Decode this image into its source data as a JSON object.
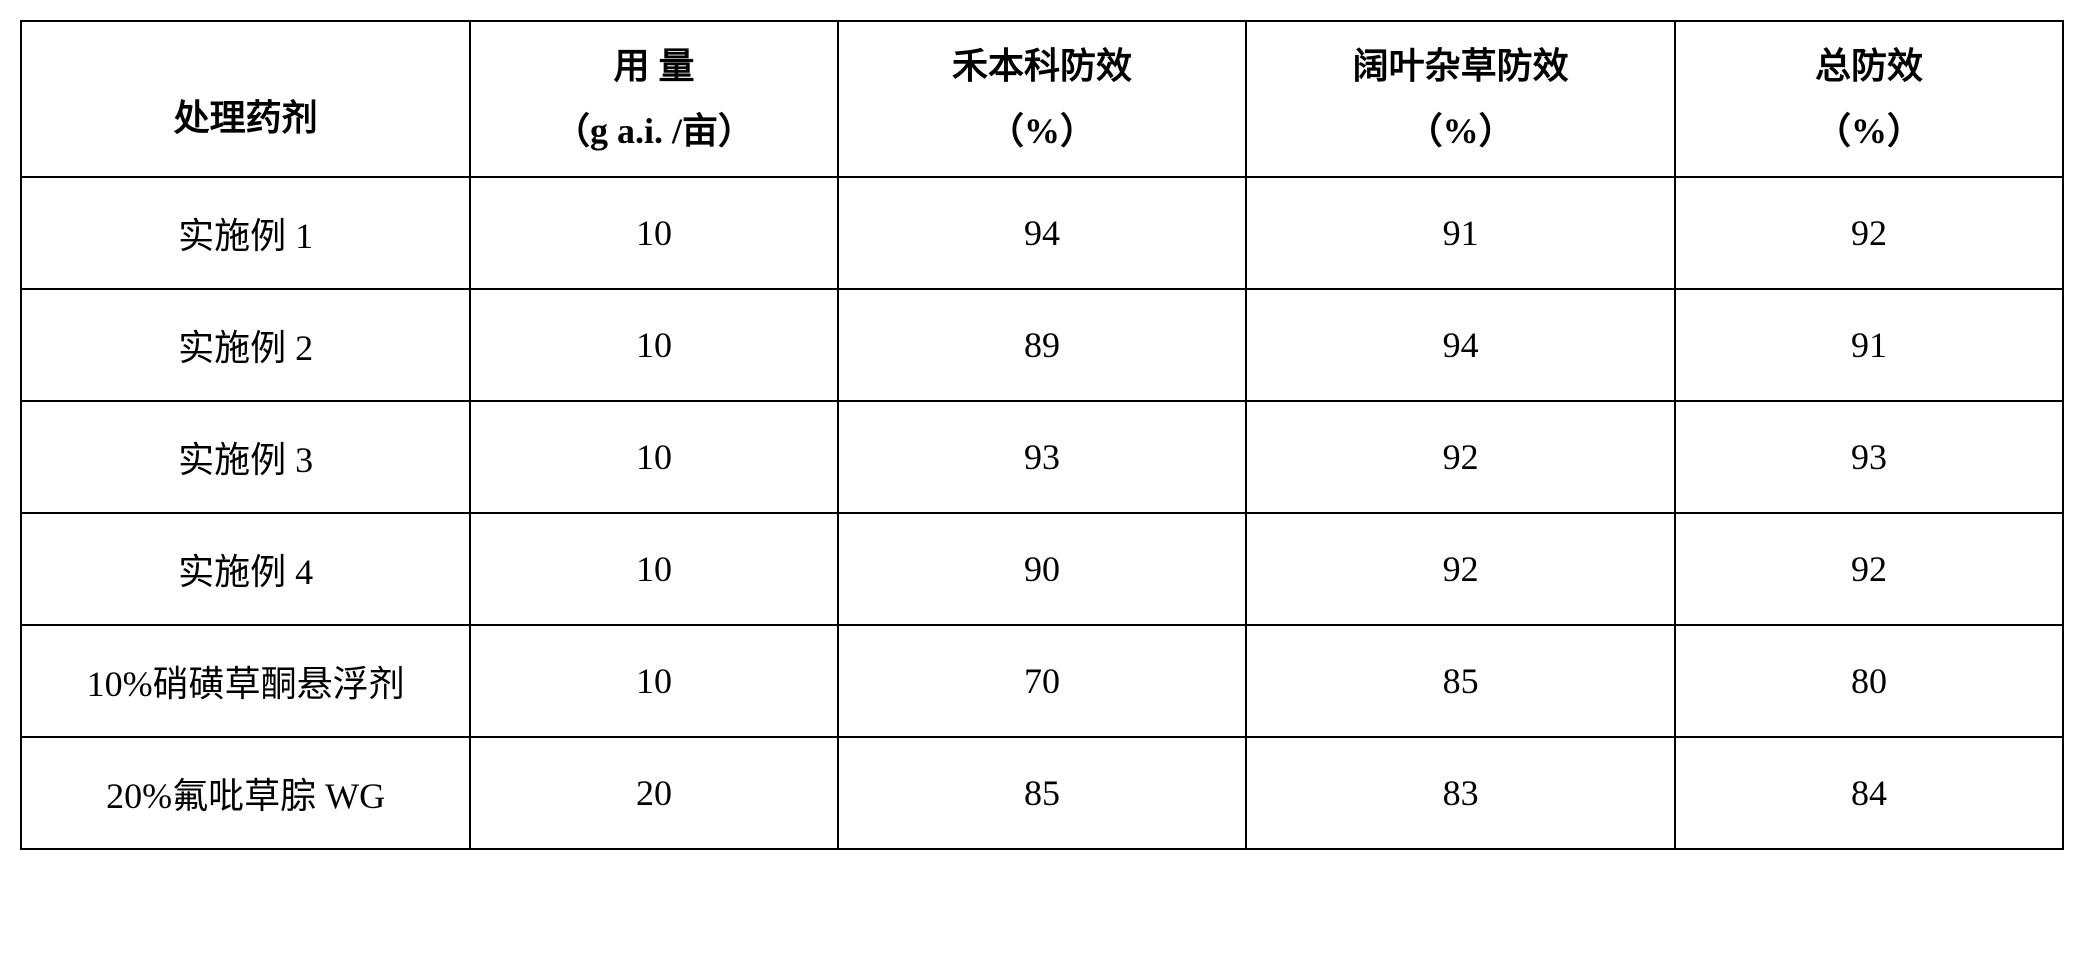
{
  "table": {
    "headers": [
      {
        "line1": "处理药剂",
        "line2": ""
      },
      {
        "line1": "用 量",
        "line2": "（g a.i. /亩）"
      },
      {
        "line1": "禾本科防效",
        "line2": "（%）"
      },
      {
        "line1": "阔叶杂草防效",
        "line2": "（%）"
      },
      {
        "line1": "总防效",
        "line2": "（%）"
      }
    ],
    "rows": [
      {
        "label": "实施例 1",
        "dose": "10",
        "grass": "94",
        "broadleaf": "91",
        "total": "92"
      },
      {
        "label": "实施例 2",
        "dose": "10",
        "grass": "89",
        "broadleaf": "94",
        "total": "91"
      },
      {
        "label": "实施例 3",
        "dose": "10",
        "grass": "93",
        "broadleaf": "92",
        "total": "93"
      },
      {
        "label": "实施例 4",
        "dose": "10",
        "grass": "90",
        "broadleaf": "92",
        "total": "92"
      },
      {
        "label": "10%硝磺草酮悬浮剂",
        "dose": "10",
        "grass": "70",
        "broadleaf": "85",
        "total": "80"
      },
      {
        "label": "20%氟吡草腙 WG",
        "dose": "20",
        "grass": "85",
        "broadleaf": "83",
        "total": "84"
      }
    ]
  }
}
